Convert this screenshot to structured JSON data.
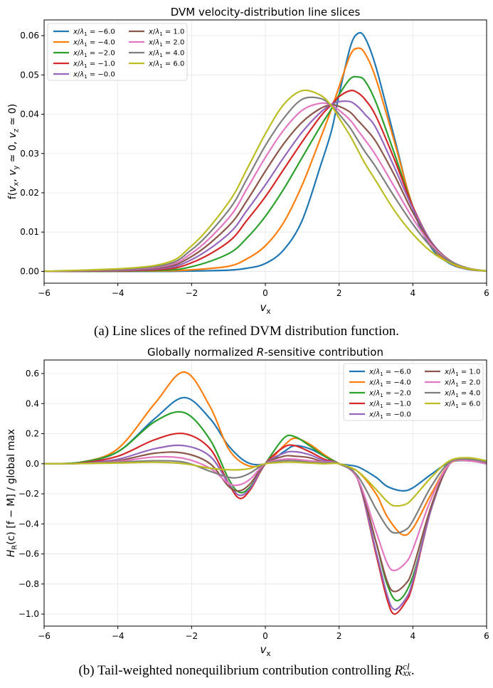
{
  "captions": {
    "a": "(a) Line slices of the refined DVM distribution function.",
    "b_text": "(b) Tail-weighted nonequilibrium contribution controlling ",
    "b_sym": "R",
    "b_sup": "cl",
    "b_sub": "xx",
    "b_end": "."
  },
  "colors": [
    "#1f77b4",
    "#ff7f0e",
    "#2ca02c",
    "#d62728",
    "#9467bd",
    "#8c564b",
    "#e377c2",
    "#7f7f7f",
    "#bcbd22"
  ],
  "chart_data": [
    {
      "type": "line",
      "title": "DVM velocity-distribution line slices",
      "xlabel": "v_x",
      "ylabel": "f(v_x, v_y ≃ 0, v_z ≃ 0)",
      "xlim": [
        -6,
        6
      ],
      "ylim": [
        -0.003,
        0.064
      ],
      "xticks": [
        -6,
        -4,
        -2,
        0,
        2,
        4,
        6
      ],
      "xtick_labels": [
        "−6",
        "−4",
        "−2",
        "0",
        "2",
        "4",
        "6"
      ],
      "yticks": [
        0,
        0.01,
        0.02,
        0.03,
        0.04,
        0.05,
        0.06
      ],
      "ytick_labels": [
        "0.00",
        "0.01",
        "0.02",
        "0.03",
        "0.04",
        "0.05",
        "0.06"
      ],
      "grid": true,
      "legend": {
        "placement": "top-left",
        "columns": 2
      },
      "series": [
        {
          "name": "x/λ1 = −6.0",
          "x": [
            -6,
            -3,
            -2,
            -1,
            -0.5,
            0,
            0.5,
            1,
            1.5,
            1.8,
            2,
            2.3,
            2.5,
            2.7,
            3,
            3.5,
            4,
            4.5,
            5,
            5.5,
            6
          ],
          "values": [
            0,
            0,
            0.0001,
            0.0003,
            0.0008,
            0.002,
            0.0055,
            0.013,
            0.027,
            0.036,
            0.045,
            0.057,
            0.0605,
            0.0595,
            0.052,
            0.034,
            0.016,
            0.006,
            0.002,
            0.0005,
            0.0001
          ]
        },
        {
          "name": "x/λ1 = −4.0",
          "x": [
            -6,
            -3,
            -2,
            -1,
            -0.5,
            0,
            0.5,
            1,
            1.5,
            1.8,
            2,
            2.3,
            2.5,
            2.7,
            3,
            3.5,
            4,
            4.5,
            5,
            5.5,
            6
          ],
          "values": [
            0,
            0.0001,
            0.0004,
            0.0013,
            0.0032,
            0.0065,
            0.0125,
            0.022,
            0.034,
            0.0415,
            0.047,
            0.055,
            0.0568,
            0.0555,
            0.049,
            0.033,
            0.0165,
            0.0065,
            0.0022,
            0.0006,
            0.0001
          ]
        },
        {
          "name": "x/λ1 = −2.0",
          "x": [
            -6,
            -3,
            -2,
            -1,
            -0.5,
            0,
            0.5,
            1,
            1.5,
            1.8,
            2,
            2.3,
            2.5,
            2.7,
            3,
            3.5,
            4,
            4.5,
            5,
            5.5,
            6
          ],
          "values": [
            0,
            0.0002,
            0.0012,
            0.0045,
            0.0085,
            0.014,
            0.021,
            0.029,
            0.037,
            0.0415,
            0.045,
            0.049,
            0.0495,
            0.0485,
            0.043,
            0.03,
            0.0165,
            0.007,
            0.0025,
            0.0007,
            0.0001
          ]
        },
        {
          "name": "x/λ1 = −1.0",
          "x": [
            -6,
            -3,
            -2,
            -1,
            -0.5,
            0,
            0.5,
            1,
            1.5,
            1.8,
            2,
            2.3,
            2.5,
            2.7,
            3,
            3.5,
            4,
            4.5,
            5,
            5.5,
            6
          ],
          "values": [
            0,
            0.0004,
            0.0022,
            0.0075,
            0.013,
            0.019,
            0.026,
            0.033,
            0.0395,
            0.0425,
            0.0445,
            0.046,
            0.0455,
            0.0438,
            0.0395,
            0.0285,
            0.0165,
            0.0075,
            0.0027,
            0.0008,
            0.0001
          ]
        },
        {
          "name": "x/λ1 = −0.0",
          "x": [
            -6,
            -3,
            -2,
            -1,
            -0.5,
            0,
            0.5,
            1,
            1.5,
            1.8,
            2,
            2.3,
            2.5,
            2.7,
            3,
            3.5,
            4,
            4.5,
            5,
            5.5,
            6
          ],
          "values": [
            0,
            0.0006,
            0.003,
            0.0095,
            0.0155,
            0.022,
            0.029,
            0.0355,
            0.0405,
            0.0425,
            0.0432,
            0.0432,
            0.042,
            0.04,
            0.0365,
            0.0265,
            0.016,
            0.0075,
            0.0028,
            0.0008,
            0.0001
          ]
        },
        {
          "name": "x/λ1 = 1.0",
          "x": [
            -6,
            -3,
            -2,
            -1,
            -0.5,
            0,
            0.5,
            1,
            1.5,
            1.8,
            2,
            2.3,
            2.5,
            2.7,
            3,
            3.5,
            4,
            4.5,
            5,
            5.5,
            6
          ],
          "values": [
            0,
            0.0008,
            0.0038,
            0.0115,
            0.018,
            0.0255,
            0.0325,
            0.038,
            0.0415,
            0.0423,
            0.042,
            0.0405,
            0.0385,
            0.0365,
            0.033,
            0.0245,
            0.015,
            0.0072,
            0.0028,
            0.0008,
            0.0001
          ]
        },
        {
          "name": "x/λ1 = 2.0",
          "x": [
            -6,
            -3,
            -2,
            -1,
            -0.5,
            0,
            0.5,
            1,
            1.5,
            1.8,
            2,
            2.3,
            2.5,
            2.7,
            3,
            3.5,
            4,
            4.5,
            5,
            5.5,
            6
          ],
          "values": [
            0,
            0.001,
            0.0046,
            0.0135,
            0.021,
            0.029,
            0.036,
            0.041,
            0.0428,
            0.0422,
            0.041,
            0.0385,
            0.036,
            0.0335,
            0.0295,
            0.0215,
            0.0135,
            0.0068,
            0.0027,
            0.0008,
            0.0001
          ]
        },
        {
          "name": "x/λ1 = 4.0",
          "x": [
            -6,
            -3,
            -2,
            -1,
            -0.5,
            0,
            0.5,
            1,
            1.5,
            1.8,
            2,
            2.3,
            2.5,
            2.7,
            3,
            3.5,
            4,
            4.5,
            5,
            5.5,
            6
          ],
          "values": [
            0,
            0.0012,
            0.0055,
            0.0155,
            0.0235,
            0.032,
            0.039,
            0.0438,
            0.044,
            0.042,
            0.04,
            0.0365,
            0.0335,
            0.0305,
            0.0265,
            0.019,
            0.012,
            0.0062,
            0.0026,
            0.0008,
            0.0001
          ]
        },
        {
          "name": "x/λ1 = 6.0",
          "x": [
            -6,
            -3,
            -2,
            -1,
            -0.5,
            0,
            0.5,
            1,
            1.5,
            1.8,
            2,
            2.3,
            2.5,
            2.7,
            3,
            3.5,
            4,
            4.5,
            5,
            5.5,
            6
          ],
          "values": [
            0,
            0.0015,
            0.0065,
            0.0175,
            0.026,
            0.035,
            0.0425,
            0.046,
            0.0448,
            0.042,
            0.039,
            0.0345,
            0.031,
            0.0275,
            0.023,
            0.0155,
            0.0095,
            0.005,
            0.0022,
            0.0007,
            0.0001
          ]
        }
      ]
    },
    {
      "type": "line",
      "title": "Globally normalized R-sensitive contribution",
      "xlabel": "v_x",
      "ylabel": "H_R(c) [f − M] / global max",
      "xlim": [
        -6,
        6
      ],
      "ylim": [
        -1.08,
        0.69
      ],
      "xticks": [
        -6,
        -4,
        -2,
        0,
        2,
        4,
        6
      ],
      "xtick_labels": [
        "−6",
        "−4",
        "−2",
        "0",
        "2",
        "4",
        "6"
      ],
      "yticks": [
        -1.0,
        -0.8,
        -0.6,
        -0.4,
        -0.2,
        0.0,
        0.2,
        0.4,
        0.6
      ],
      "ytick_labels": [
        "−1.0",
        "−0.8",
        "−0.6",
        "−0.4",
        "−0.2",
        "0.0",
        "0.2",
        "0.4",
        "0.6"
      ],
      "grid": true,
      "legend": {
        "placement": "top-right",
        "columns": 2
      },
      "series": [
        {
          "name": "x/λ1 = −6.0",
          "x": [
            -6,
            -5,
            -4,
            -3,
            -2.2,
            -1.5,
            -1,
            -0.5,
            0,
            0.5,
            0.8,
            1.2,
            1.6,
            2,
            2.5,
            3,
            3.3,
            3.7,
            4,
            4.5,
            5,
            5.5,
            6
          ],
          "values": [
            0,
            0.01,
            0.08,
            0.3,
            0.44,
            0.3,
            0.12,
            0.01,
            0,
            0.08,
            0.12,
            0.1,
            0.05,
            0,
            -0.02,
            -0.09,
            -0.15,
            -0.18,
            -0.16,
            -0.07,
            0.01,
            0.02,
            0
          ]
        },
        {
          "name": "x/λ1 = −4.0",
          "x": [
            -6,
            -5,
            -4,
            -3,
            -2.2,
            -1.5,
            -1,
            -0.5,
            0,
            0.5,
            0.8,
            1.2,
            1.6,
            2,
            2.5,
            3,
            3.3,
            3.7,
            4,
            4.5,
            5,
            5.5,
            6
          ],
          "values": [
            0,
            0.01,
            0.1,
            0.4,
            0.61,
            0.38,
            0.1,
            -0.01,
            0,
            0.12,
            0.17,
            0.13,
            0.06,
            0,
            -0.05,
            -0.2,
            -0.35,
            -0.47,
            -0.43,
            -0.2,
            0,
            0.02,
            0
          ]
        },
        {
          "name": "x/λ1 = −2.0",
          "x": [
            -6,
            -5,
            -4,
            -3,
            -2.2,
            -1.5,
            -1,
            -0.7,
            -0.4,
            0,
            0.5,
            0.8,
            1.2,
            1.6,
            2,
            2.5,
            3,
            3.3,
            3.6,
            4,
            4.5,
            5,
            5.5,
            6
          ],
          "values": [
            0,
            0.01,
            0.08,
            0.28,
            0.34,
            0.16,
            -0.1,
            -0.19,
            -0.15,
            0,
            0.17,
            0.18,
            0.12,
            0.05,
            0,
            -0.1,
            -0.52,
            -0.8,
            -0.91,
            -0.75,
            -0.3,
            0,
            0.02,
            0
          ]
        },
        {
          "name": "x/λ1 = −1.0",
          "x": [
            -6,
            -5,
            -4,
            -3,
            -2.2,
            -1.5,
            -1,
            -0.7,
            -0.4,
            0,
            0.5,
            0.8,
            1.2,
            1.6,
            2,
            2.5,
            3,
            3.3,
            3.5,
            3.8,
            4,
            4.5,
            5,
            5.5,
            6
          ],
          "values": [
            0,
            0.005,
            0.05,
            0.16,
            0.2,
            0.1,
            -0.13,
            -0.23,
            -0.17,
            0,
            0.11,
            0.12,
            0.08,
            0.03,
            0,
            -0.1,
            -0.6,
            -0.9,
            -1.0,
            -0.92,
            -0.8,
            -0.3,
            0,
            0.02,
            0
          ]
        },
        {
          "name": "x/λ1 = −0.0",
          "x": [
            -6,
            -5,
            -4,
            -3,
            -2.2,
            -1.5,
            -1,
            -0.7,
            -0.4,
            0,
            0.5,
            0.8,
            1.2,
            1.6,
            2,
            2.5,
            3,
            3.3,
            3.5,
            3.8,
            4,
            4.5,
            5,
            5.5,
            6
          ],
          "values": [
            0,
            0.003,
            0.03,
            0.1,
            0.12,
            0.05,
            -0.13,
            -0.21,
            -0.16,
            0,
            0.07,
            0.08,
            0.06,
            0.02,
            0,
            -0.1,
            -0.58,
            -0.87,
            -0.97,
            -0.9,
            -0.78,
            -0.3,
            0,
            0.02,
            0
          ]
        },
        {
          "name": "x/λ1 = 1.0",
          "x": [
            -6,
            -5,
            -4,
            -3,
            -2.2,
            -1.5,
            -1,
            -0.7,
            -0.4,
            0,
            0.5,
            0.8,
            1.2,
            1.6,
            2,
            2.5,
            3,
            3.3,
            3.5,
            3.8,
            4,
            4.5,
            5,
            5.5,
            6
          ],
          "values": [
            0,
            0.003,
            0.02,
            0.07,
            0.07,
            0.0,
            -0.15,
            -0.18,
            -0.13,
            0,
            0.05,
            0.05,
            0.04,
            0.01,
            0,
            -0.1,
            -0.52,
            -0.78,
            -0.85,
            -0.8,
            -0.7,
            -0.28,
            0,
            0.02,
            0
          ]
        },
        {
          "name": "x/λ1 = 2.0",
          "x": [
            -6,
            -5,
            -4,
            -3,
            -2.2,
            -1.5,
            -1,
            -0.7,
            -0.4,
            0,
            0.5,
            0.8,
            1.2,
            1.6,
            2,
            2.5,
            3,
            3.3,
            3.5,
            3.8,
            4,
            4.5,
            5,
            5.5,
            6
          ],
          "values": [
            0,
            0.002,
            0.015,
            0.045,
            0.035,
            -0.03,
            -0.13,
            -0.14,
            -0.1,
            0,
            0.03,
            0.03,
            0.02,
            0.01,
            0,
            -0.1,
            -0.45,
            -0.66,
            -0.71,
            -0.66,
            -0.57,
            -0.23,
            0,
            0.02,
            0
          ]
        },
        {
          "name": "x/λ1 = 4.0",
          "x": [
            -6,
            -5,
            -4,
            -3,
            -2.2,
            -1.5,
            -1,
            -0.7,
            -0.4,
            0,
            0.5,
            0.8,
            1.2,
            1.6,
            2,
            2.5,
            3,
            3.3,
            3.5,
            3.8,
            4,
            4.5,
            5,
            5.5,
            6
          ],
          "values": [
            0,
            0.002,
            0.01,
            0.02,
            0.01,
            -0.05,
            -0.09,
            -0.09,
            -0.06,
            0,
            0.02,
            0.02,
            0.01,
            0.005,
            0,
            -0.08,
            -0.3,
            -0.42,
            -0.46,
            -0.44,
            -0.38,
            -0.15,
            0.01,
            0.03,
            0.01
          ]
        },
        {
          "name": "x/λ1 = 6.0",
          "x": [
            -6,
            -5,
            -4,
            -3,
            -2.2,
            -1.5,
            -1,
            -0.7,
            -0.4,
            0,
            0.5,
            0.8,
            1.2,
            1.6,
            2,
            2.5,
            3,
            3.3,
            3.5,
            3.8,
            4,
            4.5,
            5,
            5.5,
            6
          ],
          "values": [
            0,
            0.001,
            0.005,
            0.01,
            0.0,
            -0.03,
            -0.04,
            -0.04,
            -0.03,
            0,
            0.01,
            0.01,
            0.005,
            0.0,
            0,
            -0.05,
            -0.17,
            -0.25,
            -0.28,
            -0.27,
            -0.23,
            -0.09,
            0.02,
            0.04,
            0.02
          ]
        }
      ]
    }
  ]
}
